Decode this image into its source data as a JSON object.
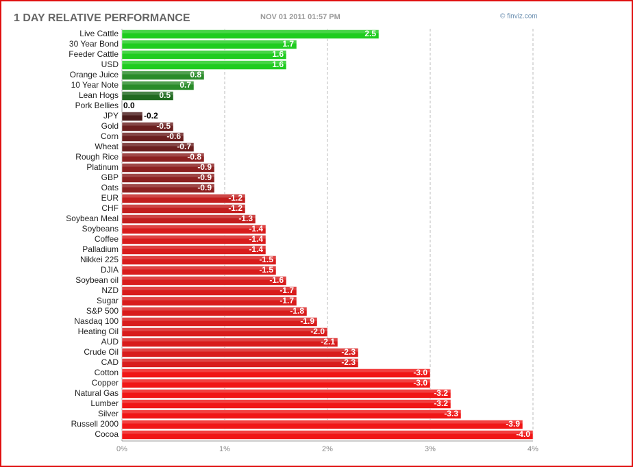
{
  "chart_data": {
    "type": "hbar",
    "title": "1 DAY RELATIVE PERFORMANCE",
    "subtitle": "NOV 01 2011 01:57 PM",
    "source": "© finviz.com",
    "categories": [
      "Live Cattle",
      "30 Year Bond",
      "Feeder Cattle",
      "USD",
      "Orange Juice",
      "10 Year Note",
      "Lean Hogs",
      "Pork Bellies",
      "JPY",
      "Gold",
      "Corn",
      "Wheat",
      "Rough Rice",
      "Platinum",
      "GBP",
      "Oats",
      "EUR",
      "CHF",
      "Soybean Meal",
      "Soybeans",
      "Coffee",
      "Palladium",
      "Nikkei 225",
      "DJIA",
      "Soybean oil",
      "NZD",
      "Sugar",
      "S&P 500",
      "Nasdaq 100",
      "Heating Oil",
      "AUD",
      "Crude Oil",
      "CAD",
      "Cotton",
      "Copper",
      "Natural Gas",
      "Lumber",
      "Silver",
      "Russell 2000",
      "Cocoa"
    ],
    "values": [
      2.5,
      1.7,
      1.6,
      1.6,
      0.8,
      0.7,
      0.5,
      0.0,
      -0.2,
      -0.5,
      -0.6,
      -0.7,
      -0.8,
      -0.9,
      -0.9,
      -0.9,
      -1.2,
      -1.2,
      -1.3,
      -1.4,
      -1.4,
      -1.4,
      -1.5,
      -1.5,
      -1.6,
      -1.7,
      -1.7,
      -1.8,
      -1.9,
      -2.0,
      -2.1,
      -2.3,
      -2.3,
      -3.0,
      -3.0,
      -3.2,
      -3.2,
      -3.3,
      -3.9,
      -4.0
    ],
    "value_labels": [
      "2.5",
      "1.7",
      "1.6",
      "1.6",
      "0.8",
      "0.7",
      "0.5",
      "0.0",
      "-0.2",
      "-0.5",
      "-0.6",
      "-0.7",
      "-0.8",
      "-0.9",
      "-0.9",
      "-0.9",
      "-1.2",
      "-1.2",
      "-1.3",
      "-1.4",
      "-1.4",
      "-1.4",
      "-1.5",
      "-1.5",
      "-1.6",
      "-1.7",
      "-1.7",
      "-1.8",
      "-1.9",
      "-2.0",
      "-2.1",
      "-2.3",
      "-2.3",
      "-3.0",
      "-3.0",
      "-3.2",
      "-3.2",
      "-3.3",
      "-3.9",
      "-4.0"
    ],
    "colors": [
      "#1fcc1f",
      "#1fcc1f",
      "#1fcc1f",
      "#1fcc1f",
      "#2a8c2a",
      "#2a8c2a",
      "#1f6a1f",
      "#333333",
      "#4a1a1a",
      "#6b1f1f",
      "#6b1f1f",
      "#6b1f1f",
      "#8c2020",
      "#8c2020",
      "#8c2020",
      "#8c2020",
      "#c21e1e",
      "#c21e1e",
      "#c21e1e",
      "#d81c1c",
      "#d81c1c",
      "#d81c1c",
      "#d81c1c",
      "#d81c1c",
      "#d81c1c",
      "#d81c1c",
      "#d81c1c",
      "#d81c1c",
      "#d81c1c",
      "#d81c1c",
      "#d81c1c",
      "#d81c1c",
      "#d81c1c",
      "#f01616",
      "#f01616",
      "#f01616",
      "#f01616",
      "#f01616",
      "#f01616",
      "#f01616"
    ],
    "xlim": [
      0,
      4
    ],
    "xticks": [
      {
        "value": 0,
        "label": "0%"
      },
      {
        "value": 1,
        "label": "1%"
      },
      {
        "value": 2,
        "label": "2%"
      },
      {
        "value": 3,
        "label": "3%"
      },
      {
        "value": 4,
        "label": "4%"
      }
    ],
    "grid": true
  }
}
